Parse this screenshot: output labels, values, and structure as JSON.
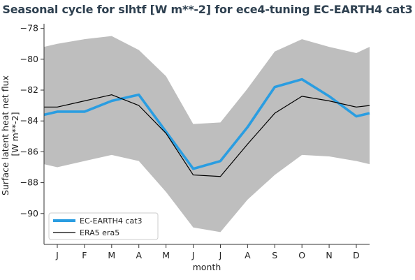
{
  "chart_data": {
    "type": "line",
    "title": "Seasonal cycle for slhtf [W m**-2] for ece4-tuning EC-EARTH4 cat3",
    "xlabel": "month",
    "ylabel_lines": [
      "Surface latent heat net flux",
      "[W m**-2]"
    ],
    "categories": [
      "J",
      "F",
      "M",
      "A",
      "M",
      "J",
      "J",
      "A",
      "S",
      "O",
      "N",
      "D"
    ],
    "ylim": [
      -92,
      -77.7
    ],
    "yticks": [
      -78,
      -80,
      -82,
      -84,
      -86,
      -88,
      -90
    ],
    "series": [
      {
        "name": "EC-EARTH4 cat3",
        "color": "#2a9de1",
        "values": [
          -83.4,
          -83.4,
          -82.7,
          -82.3,
          -84.7,
          -87.1,
          -86.6,
          -84.4,
          -81.8,
          -81.3,
          -82.4,
          -83.7
        ],
        "edge_values": [
          -83.6,
          -83.5
        ]
      },
      {
        "name": "ERA5 era5",
        "color": "#000000",
        "values": [
          -83.1,
          -82.7,
          -82.3,
          -83.0,
          -84.8,
          -87.5,
          -87.6,
          -85.5,
          -83.5,
          -82.4,
          -82.7,
          -83.1
        ],
        "edge_values": [
          -83.1,
          -83.0
        ]
      }
    ],
    "band": {
      "color": "#bebebe",
      "upper": [
        -79.0,
        -78.7,
        -78.5,
        -79.4,
        -81.1,
        -84.2,
        -84.1,
        -81.9,
        -79.5,
        -78.7,
        -79.2,
        -79.6
      ],
      "lower": [
        -87.0,
        -86.6,
        -86.2,
        -86.6,
        -88.6,
        -90.9,
        -91.2,
        -89.1,
        -87.5,
        -86.2,
        -86.3,
        -86.6
      ],
      "upper_edges": [
        -79.2,
        -79.2
      ],
      "lower_edges": [
        -86.8,
        -86.8
      ]
    },
    "legend_position": "lower-left",
    "grid": false
  }
}
